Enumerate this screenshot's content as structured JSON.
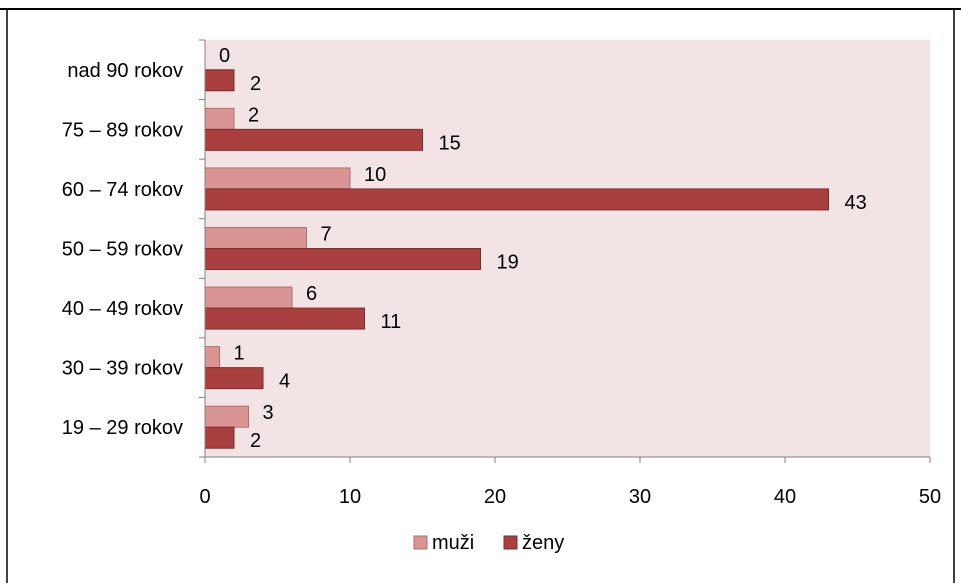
{
  "chart_data": {
    "type": "bar",
    "orientation": "horizontal",
    "categories": [
      "nad 90 rokov",
      "75 – 89  rokov",
      "60 – 74 rokov",
      "50 – 59 rokov",
      "40 – 49 rokov",
      "30 – 39 rokov",
      "19 – 29 rokov"
    ],
    "series": [
      {
        "name": "muži",
        "values": [
          0,
          2,
          10,
          7,
          6,
          1,
          3
        ],
        "color": "#d99594"
      },
      {
        "name": "ženy",
        "values": [
          2,
          15,
          43,
          19,
          11,
          4,
          2
        ],
        "color": "#a9403f"
      }
    ],
    "xlim": [
      0,
      50
    ],
    "xticks": [
      0,
      10,
      20,
      30,
      40,
      50
    ],
    "data_labels": true,
    "grid": false,
    "legend": "bottom",
    "plot_background": "#f2e4e4"
  }
}
